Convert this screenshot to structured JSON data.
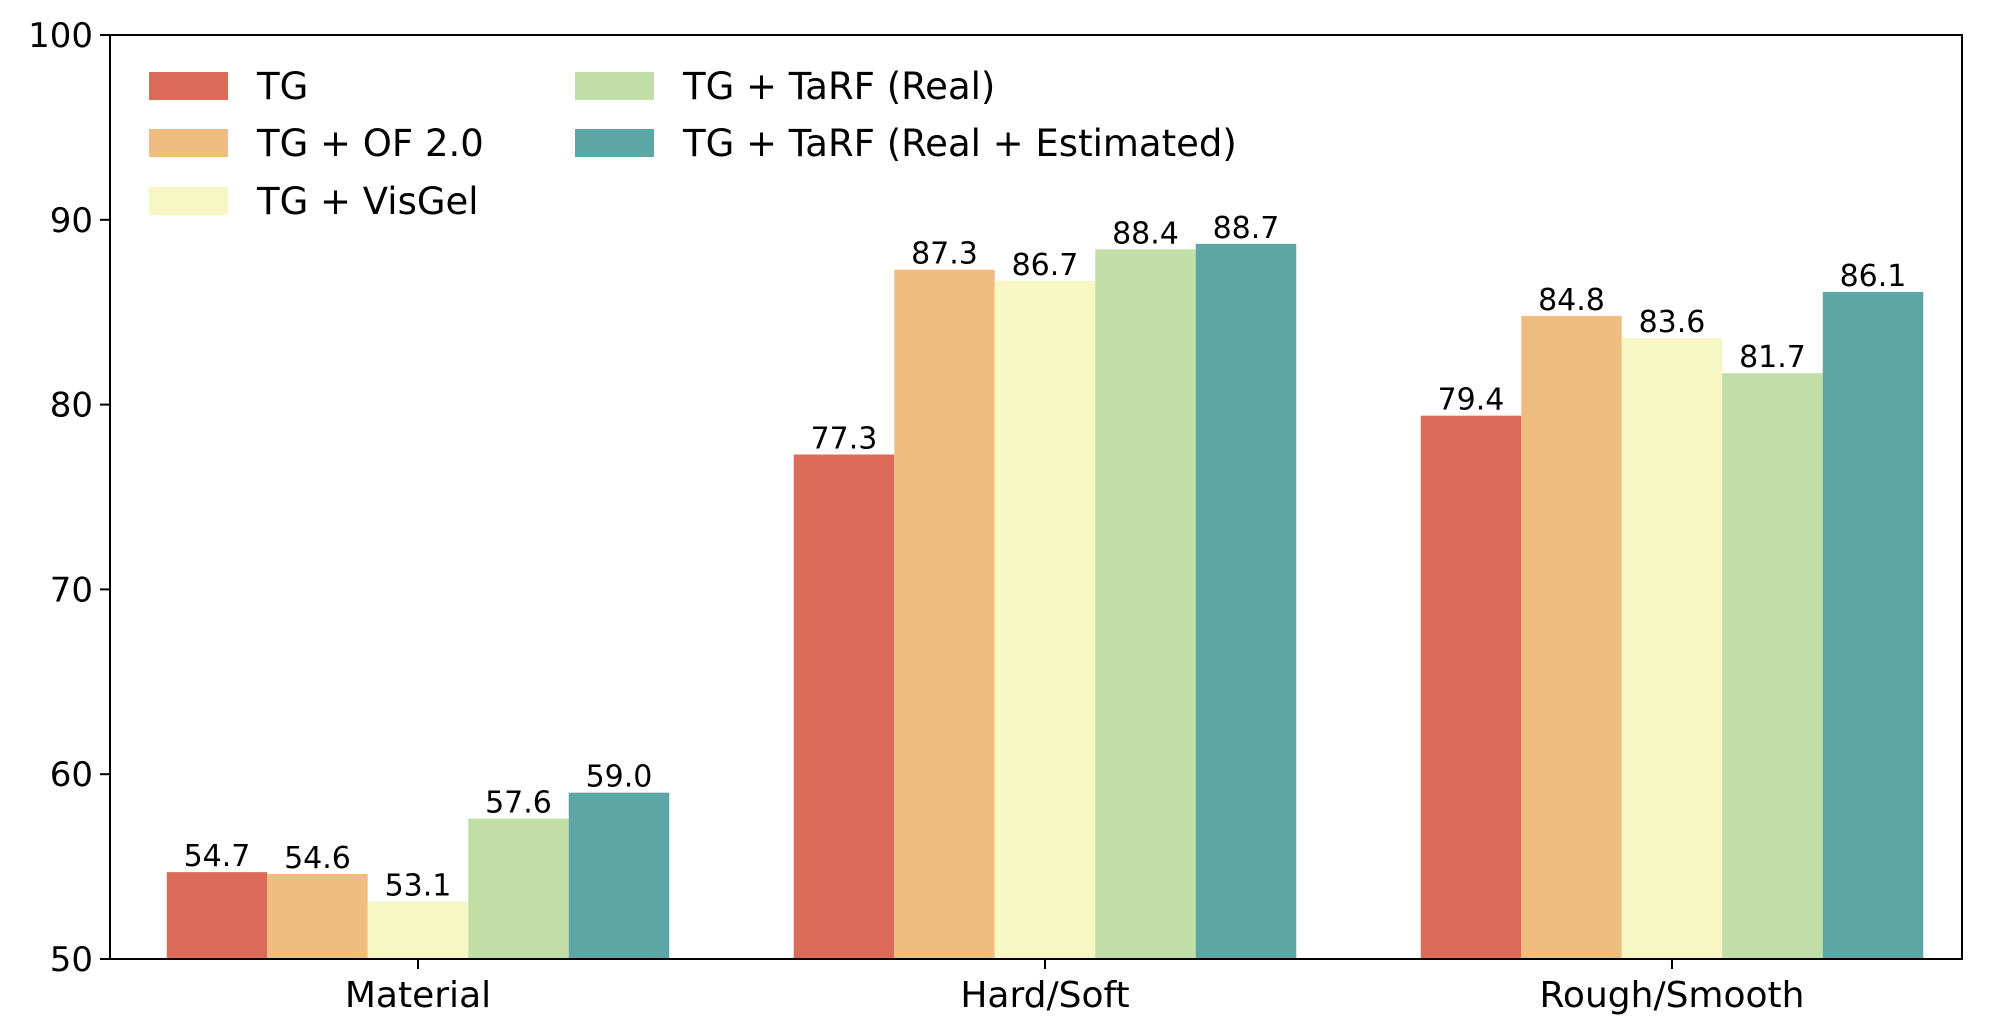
{
  "chart_data": {
    "type": "bar",
    "title": "",
    "xlabel": "",
    "ylabel": "",
    "categories": [
      "Material",
      "Hard/Soft",
      "Rough/Smooth"
    ],
    "series": [
      {
        "name": "TG",
        "color": "#dc6a59",
        "values": [
          54.7,
          77.3,
          79.4
        ],
        "labels": [
          "54.7",
          "77.3",
          "79.4"
        ]
      },
      {
        "name": "TG + OF 2.0",
        "color": "#efbd80",
        "values": [
          54.6,
          87.3,
          84.8
        ],
        "labels": [
          "54.6",
          "87.3",
          "84.8"
        ]
      },
      {
        "name": "TG + VisGel",
        "color": "#f7f7c4",
        "values": [
          53.1,
          86.7,
          83.6
        ],
        "labels": [
          "53.1",
          "86.7",
          "83.6"
        ]
      },
      {
        "name": "TG + TaRF (Real)",
        "color": "#c0dea6",
        "values": [
          57.6,
          88.4,
          81.7
        ],
        "labels": [
          "57.6",
          "88.4",
          "81.7"
        ]
      },
      {
        "name": "TG + TaRF (Real + Estimated)",
        "color": "#5ea6a5",
        "values": [
          59.0,
          88.7,
          86.1
        ],
        "labels": [
          "59.0",
          "88.7",
          "86.1"
        ]
      }
    ],
    "ylim": [
      50,
      100
    ],
    "yticks": [
      50,
      60,
      70,
      80,
      90,
      100
    ],
    "ytick_labels": [
      "50",
      "60",
      "70",
      "80",
      "90",
      "100"
    ],
    "grid": false,
    "legend": {
      "placement": "top-left",
      "columns": 2
    }
  }
}
